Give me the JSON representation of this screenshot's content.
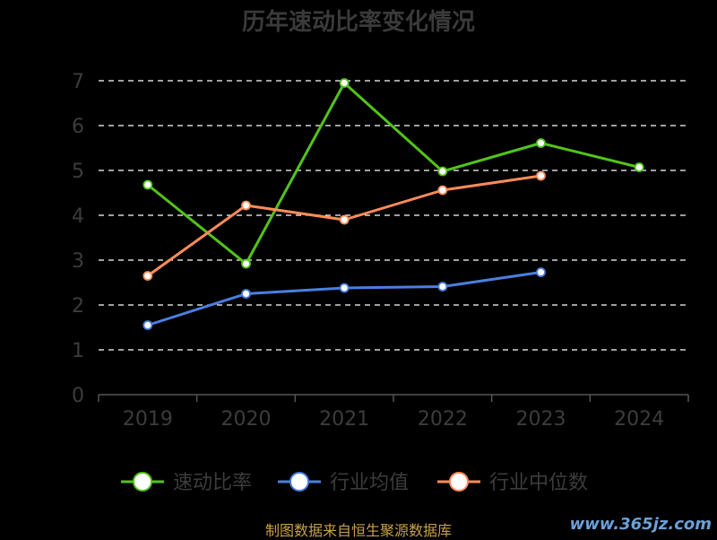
{
  "chart_data": {
    "type": "line",
    "title": "历年速动比率变化情况",
    "categories": [
      "2019",
      "2020",
      "2021",
      "2022",
      "2023",
      "2024"
    ],
    "ylim": [
      0,
      7
    ],
    "yticks": [
      0,
      1,
      2,
      3,
      4,
      5,
      6,
      7
    ],
    "grid": true,
    "legend_position": "bottom",
    "series": [
      {
        "name": "速动比率",
        "color": "#52c41a",
        "values": [
          4.68,
          2.92,
          6.95,
          4.98,
          5.61,
          5.07
        ]
      },
      {
        "name": "行业均值",
        "color": "#4a7fe0",
        "values": [
          1.55,
          2.25,
          2.38,
          2.41,
          2.73,
          null
        ]
      },
      {
        "name": "行业中位数",
        "color": "#ff8c5a",
        "values": [
          2.65,
          4.22,
          3.9,
          4.56,
          4.88,
          null
        ]
      }
    ]
  },
  "footer": {
    "source": "制图数据来自恒生聚源数据库",
    "watermark": "www.365jz.com"
  }
}
